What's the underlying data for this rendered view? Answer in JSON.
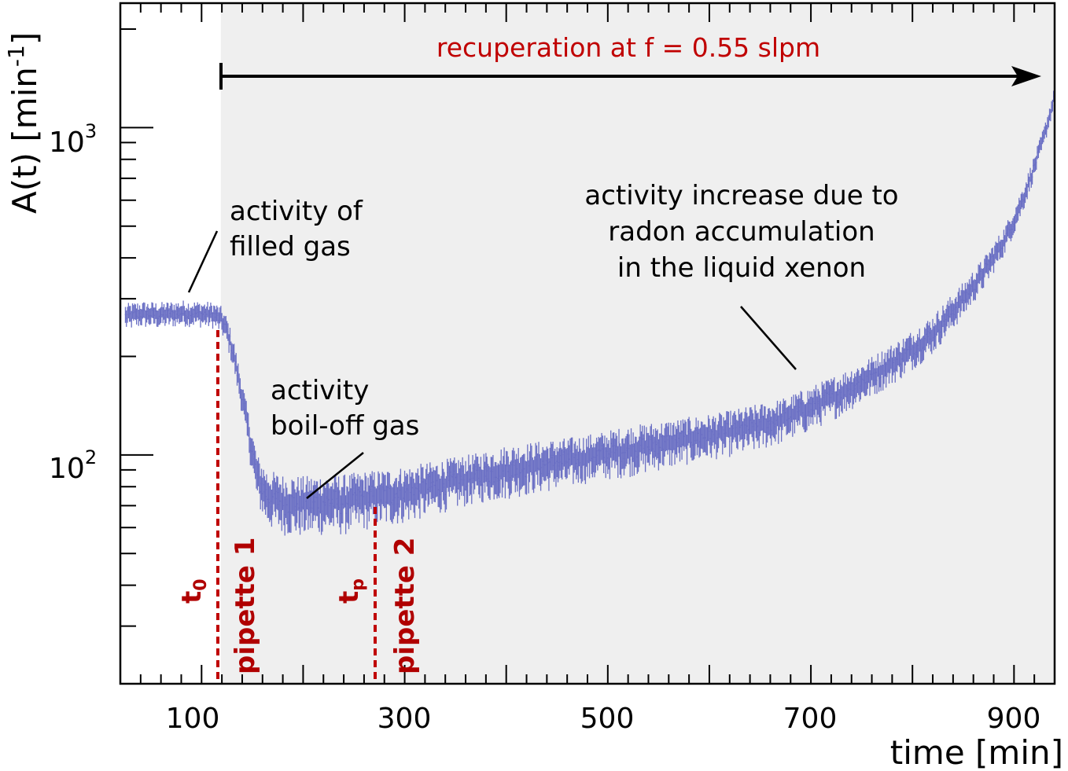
{
  "chart_data": {
    "type": "scatter",
    "xlabel": "time [min]",
    "ylabel": "A(t) [min",
    "ylabel_sup": "-1",
    "ylabel_close": "]",
    "xlim": [
      20,
      940
    ],
    "ylim": [
      20,
      2400
    ],
    "yscale": "log",
    "grid": false,
    "legend": "none",
    "x_ticks": [
      "100",
      "300",
      "500",
      "700",
      "900"
    ],
    "y_ticks": [
      {
        "base": "10",
        "exp": "2"
      },
      {
        "base": "10",
        "exp": "3"
      }
    ],
    "shaded_region_start": 119,
    "colors": {
      "data": "#6a6fc4",
      "marker": "#c00000",
      "shade": "#efefef",
      "annotation_red": "#c00000"
    },
    "series": [
      {
        "x": [
          25,
          40,
          60,
          80,
          100,
          112,
          119,
          125,
          132,
          140,
          148,
          155,
          165,
          180,
          200,
          220,
          240,
          260,
          275,
          290,
          310,
          340,
          370,
          400,
          430,
          460,
          490,
          520,
          550,
          580,
          610,
          640,
          670,
          700,
          730,
          760,
          790,
          820,
          850,
          870,
          890,
          900,
          910,
          920,
          930,
          940
        ],
        "y": [
          265,
          270,
          268,
          272,
          270,
          268,
          260,
          240,
          200,
          150,
          110,
          85,
          75,
          72,
          71,
          72,
          72,
          74,
          75,
          76,
          78,
          82,
          86,
          90,
          93,
          96,
          100,
          104,
          108,
          112,
          116,
          121,
          128,
          140,
          155,
          175,
          200,
          235,
          300,
          360,
          450,
          520,
          620,
          760,
          950,
          1250
        ],
        "error": [
          15,
          15,
          15,
          15,
          15,
          15,
          15,
          15,
          13,
          11,
          10,
          9,
          9,
          9,
          9,
          9,
          9,
          9,
          9,
          9,
          9,
          9,
          9,
          10,
          10,
          10,
          10,
          11,
          11,
          11,
          11,
          12,
          12,
          13,
          14,
          15,
          17,
          19,
          22,
          24,
          27,
          30,
          33,
          37,
          42,
          50
        ]
      }
    ],
    "vertical_markers": [
      {
        "x": 119,
        "label": "t",
        "sub": "0",
        "name": "pipette 1"
      },
      {
        "x": 273,
        "label": "t",
        "sub": "p",
        "name": "pipette 2"
      }
    ],
    "annotations": {
      "recuperation": "recuperation at f = 0.55 slpm",
      "filled_gas": [
        "activity of",
        "filled gas"
      ],
      "boiloff_gas": [
        "activity",
        "boil-off gas"
      ],
      "increase": [
        "activity increase due to",
        "radon accumulation",
        "in the liquid xenon"
      ]
    }
  }
}
